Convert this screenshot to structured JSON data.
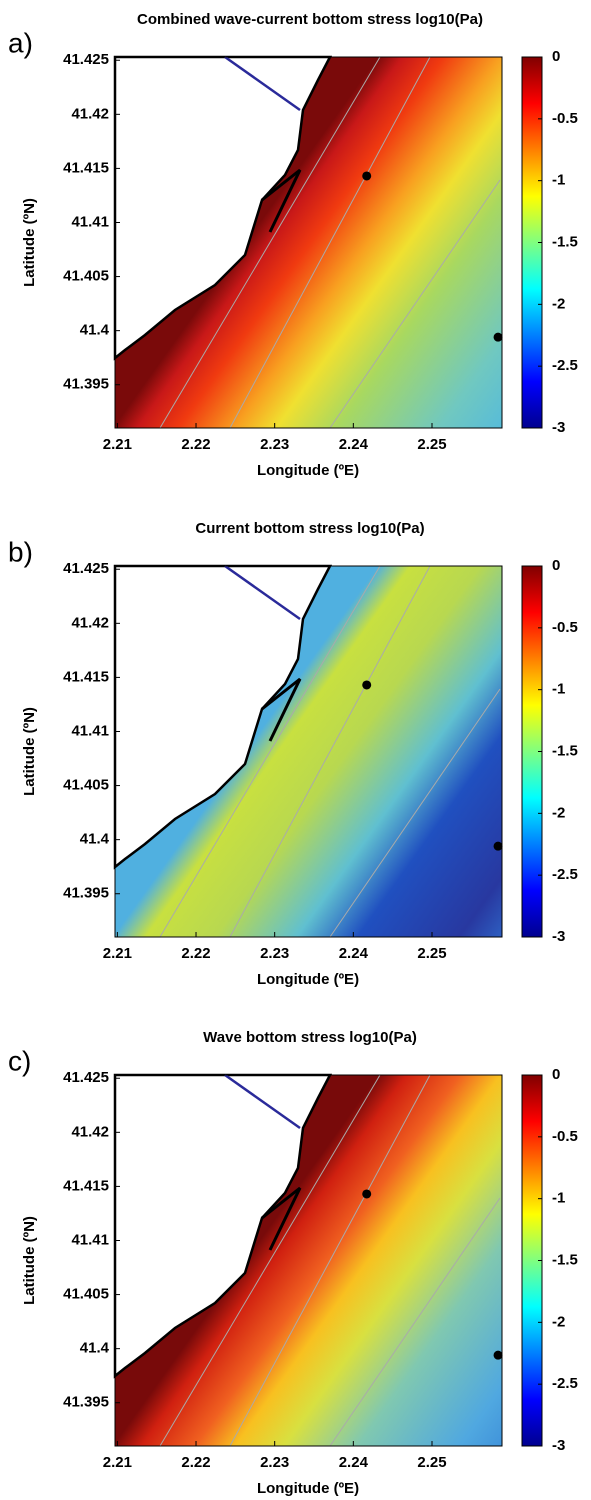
{
  "chart_data": [
    {
      "type": "heatmap",
      "panel_label": "a)",
      "title": "Combined wave-current bottom stress log10(Pa)",
      "xlabel": "Longitude (ºE)",
      "ylabel": "Latitude (ºN)",
      "xlim": [
        2.2097,
        2.2589
      ],
      "xticks": [
        2.21,
        2.22,
        2.23,
        2.24,
        2.25
      ],
      "ylim": [
        41.391,
        41.4253
      ],
      "yticks": [
        41.395,
        41.4,
        41.405,
        41.41,
        41.415,
        41.42,
        41.425
      ],
      "clim": [
        -3,
        0
      ],
      "cticks": [
        -3,
        -2.5,
        -2,
        -1.5,
        -1,
        -0.5,
        0
      ],
      "colormap": "jet",
      "points": {
        "x": [
          2.2417,
          2.2584
        ],
        "y": [
          41.4143,
          41.3994
        ],
        "color": "#000000"
      }
    },
    {
      "type": "heatmap",
      "panel_label": "b)",
      "title": "Current bottom stress log10(Pa)",
      "xlabel": "Longitude (ºE)",
      "ylabel": "Latitude (ºN)",
      "xlim": [
        2.2097,
        2.2589
      ],
      "xticks": [
        2.21,
        2.22,
        2.23,
        2.24,
        2.25
      ],
      "ylim": [
        41.391,
        41.4253
      ],
      "yticks": [
        41.395,
        41.4,
        41.405,
        41.41,
        41.415,
        41.42,
        41.425
      ],
      "clim": [
        -3,
        0
      ],
      "cticks": [
        -3,
        -2.5,
        -2,
        -1.5,
        -1,
        -0.5,
        0
      ],
      "colormap": "jet",
      "points": {
        "x": [
          2.2417,
          2.2584
        ],
        "y": [
          41.4143,
          41.3994
        ],
        "color": "#000000"
      }
    },
    {
      "type": "heatmap",
      "panel_label": "c)",
      "title": "Wave bottom stress log10(Pa)",
      "xlabel": "Longitude (ºE)",
      "ylabel": "Latitude (ºN)",
      "xlim": [
        2.2097,
        2.2589
      ],
      "xticks": [
        2.21,
        2.22,
        2.23,
        2.24,
        2.25
      ],
      "ylim": [
        41.391,
        41.4253
      ],
      "yticks": [
        41.395,
        41.4,
        41.405,
        41.41,
        41.415,
        41.42,
        41.425
      ],
      "clim": [
        -3,
        0
      ],
      "cticks": [
        -3,
        -2.5,
        -2,
        -1.5,
        -1,
        -0.5,
        0
      ],
      "colormap": "jet",
      "points": {
        "x": [
          2.2417,
          2.2584
        ],
        "y": [
          41.4143,
          41.3994
        ],
        "color": "#000000"
      }
    }
  ]
}
